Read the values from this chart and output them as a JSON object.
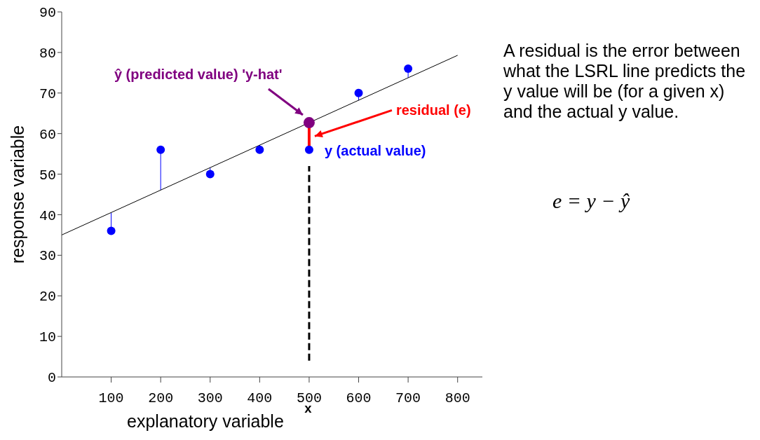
{
  "chart_data": {
    "type": "scatter",
    "xlabel": "explanatory variable",
    "ylabel": "response variable",
    "xlim": [
      0,
      850
    ],
    "xticks": [
      100,
      200,
      300,
      400,
      500,
      600,
      700,
      800
    ],
    "ylim": [
      0,
      90
    ],
    "yticks": [
      0,
      10,
      20,
      30,
      40,
      50,
      60,
      70,
      80,
      90
    ],
    "series": [
      {
        "color": "#0000ff",
        "x": [
          100,
          200,
          300,
          400,
          500,
          600,
          700
        ],
        "values": [
          36,
          56,
          50,
          56,
          56,
          70,
          76
        ],
        "errors": [
          [
            36,
            40.5
          ],
          [
            46.1,
            56
          ],
          [
            50,
            51.6
          ],
          [
            56,
            57.2
          ],
          null,
          [
            68.2,
            70
          ],
          [
            73.8,
            76
          ]
        ]
      },
      {
        "type": "line",
        "color": "#000000",
        "x": [
          0,
          800
        ],
        "values": [
          35,
          79.3
        ]
      },
      {
        "type": "line",
        "color": "#ff0000",
        "x": [
          500,
          500
        ],
        "values": [
          56,
          62.7
        ]
      },
      {
        "type": "line",
        "color": "#000000",
        "x": [
          500,
          500
        ],
        "values": [
          4,
          52
        ],
        "line_style": "dashed"
      },
      {
        "type": "scatter",
        "color": "#800080",
        "x": [
          500
        ],
        "values": [
          62.7
        ]
      }
    ],
    "annotations": [
      "ŷ (predicted value) 'y-hat'",
      "y (actual value)",
      "residual (e)",
      "A residual is the error between what the LSRL line predicts the y value will be (for a given x) and the actual y value.",
      "e = y − ŷ",
      "x"
    ]
  }
}
